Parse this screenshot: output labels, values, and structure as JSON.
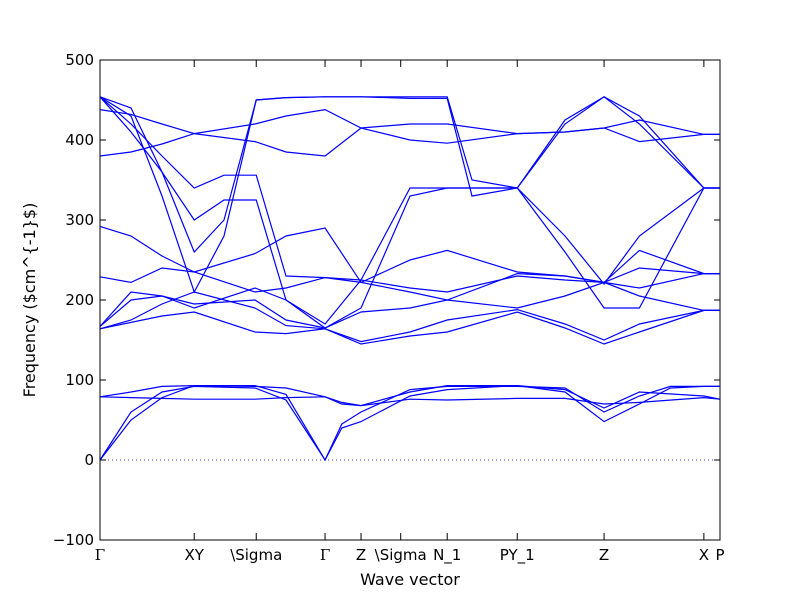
{
  "chart_data": {
    "type": "line",
    "title": "",
    "xlabel": "Wave vector",
    "ylabel": "Frequency ($cm^{-1}$)",
    "ylim": [
      -100,
      500
    ],
    "xlim": [
      0,
      1
    ],
    "yticks": [
      -100,
      0,
      100,
      200,
      300,
      400,
      500
    ],
    "grid": false,
    "legend": "none",
    "colors": {
      "bands": "#0000ff",
      "zero_line": "#0000ff",
      "axes": "#000000"
    },
    "special_points": [
      {
        "label": "Γ",
        "x": 0.0
      },
      {
        "label": "XY",
        "x": 0.152
      },
      {
        "label": "\\Sigma",
        "x": 0.252
      },
      {
        "label": "Γ",
        "x": 0.363
      },
      {
        "label": "Z",
        "x": 0.421
      },
      {
        "label": "\\Sigma",
        "x": 0.485
      },
      {
        "label": "N_1",
        "x": 0.56
      },
      {
        "label": "PY_1",
        "x": 0.673
      },
      {
        "label": "Z",
        "x": 0.813
      },
      {
        "label": "X",
        "x": 0.974
      },
      {
        "label": "P",
        "x": 1.0
      }
    ],
    "series": [
      {
        "values": [
          [
            0,
            0
          ],
          [
            0.05,
            60
          ],
          [
            0.1,
            85
          ],
          [
            0.152,
            92
          ],
          [
            0.25,
            90
          ],
          [
            0.3,
            75
          ],
          [
            0.363,
            0
          ],
          [
            0.39,
            40
          ],
          [
            0.421,
            48
          ],
          [
            0.5,
            80
          ],
          [
            0.56,
            88
          ],
          [
            0.673,
            93
          ],
          [
            0.75,
            85
          ],
          [
            0.813,
            48
          ],
          [
            0.87,
            70
          ],
          [
            0.92,
            90
          ],
          [
            0.974,
            92
          ],
          [
            1,
            92
          ]
        ]
      },
      {
        "values": [
          [
            0,
            0
          ],
          [
            0.05,
            50
          ],
          [
            0.1,
            78
          ],
          [
            0.152,
            93
          ],
          [
            0.25,
            93
          ],
          [
            0.3,
            82
          ],
          [
            0.363,
            0
          ],
          [
            0.39,
            45
          ],
          [
            0.421,
            60
          ],
          [
            0.5,
            88
          ],
          [
            0.56,
            92
          ],
          [
            0.673,
            92
          ],
          [
            0.75,
            90
          ],
          [
            0.813,
            60
          ],
          [
            0.87,
            80
          ],
          [
            0.92,
            92
          ],
          [
            0.974,
            92
          ],
          [
            1,
            92
          ]
        ]
      },
      {
        "values": [
          [
            0,
            79
          ],
          [
            0.05,
            85
          ],
          [
            0.1,
            92
          ],
          [
            0.152,
            93
          ],
          [
            0.25,
            92
          ],
          [
            0.3,
            90
          ],
          [
            0.363,
            79
          ],
          [
            0.39,
            72
          ],
          [
            0.421,
            68
          ],
          [
            0.5,
            85
          ],
          [
            0.56,
            93
          ],
          [
            0.673,
            93
          ],
          [
            0.75,
            88
          ],
          [
            0.813,
            65
          ],
          [
            0.87,
            85
          ],
          [
            0.974,
            80
          ],
          [
            1,
            76
          ]
        ]
      },
      {
        "values": [
          [
            0,
            79
          ],
          [
            0.05,
            78
          ],
          [
            0.1,
            77
          ],
          [
            0.152,
            76
          ],
          [
            0.25,
            76
          ],
          [
            0.3,
            78
          ],
          [
            0.363,
            79
          ],
          [
            0.39,
            70
          ],
          [
            0.421,
            68
          ],
          [
            0.5,
            76
          ],
          [
            0.56,
            75
          ],
          [
            0.673,
            77
          ],
          [
            0.75,
            77
          ],
          [
            0.813,
            70
          ],
          [
            0.87,
            72
          ],
          [
            0.974,
            78
          ],
          [
            1,
            76
          ]
        ]
      },
      {
        "values": [
          [
            0,
            164
          ],
          [
            0.05,
            172
          ],
          [
            0.1,
            180
          ],
          [
            0.152,
            185
          ],
          [
            0.25,
            160
          ],
          [
            0.3,
            158
          ],
          [
            0.363,
            164
          ],
          [
            0.421,
            145
          ],
          [
            0.5,
            155
          ],
          [
            0.56,
            160
          ],
          [
            0.673,
            185
          ],
          [
            0.75,
            165
          ],
          [
            0.813,
            145
          ],
          [
            0.87,
            160
          ],
          [
            0.974,
            187
          ],
          [
            1,
            187
          ]
        ]
      },
      {
        "values": [
          [
            0,
            164
          ],
          [
            0.05,
            175
          ],
          [
            0.1,
            195
          ],
          [
            0.152,
            210
          ],
          [
            0.25,
            190
          ],
          [
            0.3,
            168
          ],
          [
            0.363,
            164
          ],
          [
            0.421,
            148
          ],
          [
            0.5,
            160
          ],
          [
            0.56,
            175
          ],
          [
            0.673,
            188
          ],
          [
            0.75,
            170
          ],
          [
            0.813,
            150
          ],
          [
            0.87,
            170
          ],
          [
            0.974,
            187
          ],
          [
            1,
            187
          ]
        ]
      },
      {
        "values": [
          [
            0,
            167
          ],
          [
            0.05,
            200
          ],
          [
            0.1,
            205
          ],
          [
            0.152,
            195
          ],
          [
            0.25,
            200
          ],
          [
            0.3,
            175
          ],
          [
            0.363,
            165
          ],
          [
            0.421,
            185
          ],
          [
            0.5,
            190
          ],
          [
            0.56,
            200
          ],
          [
            0.673,
            190
          ],
          [
            0.75,
            205
          ],
          [
            0.813,
            222
          ],
          [
            0.87,
            205
          ],
          [
            0.974,
            187
          ],
          [
            1,
            187
          ]
        ]
      },
      {
        "values": [
          [
            0,
            167
          ],
          [
            0.05,
            210
          ],
          [
            0.1,
            205
          ],
          [
            0.152,
            190
          ],
          [
            0.25,
            215
          ],
          [
            0.3,
            200
          ],
          [
            0.363,
            170
          ],
          [
            0.421,
            225
          ],
          [
            0.5,
            215
          ],
          [
            0.56,
            210
          ],
          [
            0.673,
            230
          ],
          [
            0.75,
            225
          ],
          [
            0.813,
            222
          ],
          [
            0.87,
            240
          ],
          [
            0.974,
            233
          ],
          [
            1,
            233
          ]
        ]
      },
      {
        "values": [
          [
            0,
            229
          ],
          [
            0.05,
            222
          ],
          [
            0.1,
            240
          ],
          [
            0.152,
            235
          ],
          [
            0.25,
            258
          ],
          [
            0.3,
            280
          ],
          [
            0.363,
            290
          ],
          [
            0.421,
            222
          ],
          [
            0.5,
            250
          ],
          [
            0.56,
            262
          ],
          [
            0.673,
            235
          ],
          [
            0.75,
            230
          ],
          [
            0.813,
            222
          ],
          [
            0.87,
            262
          ],
          [
            0.974,
            233
          ],
          [
            1,
            233
          ]
        ]
      },
      {
        "values": [
          [
            0,
            292
          ],
          [
            0.05,
            280
          ],
          [
            0.1,
            255
          ],
          [
            0.152,
            235
          ],
          [
            0.25,
            210
          ],
          [
            0.3,
            215
          ],
          [
            0.363,
            228
          ],
          [
            0.421,
            222
          ],
          [
            0.5,
            210
          ],
          [
            0.56,
            200
          ],
          [
            0.673,
            233
          ],
          [
            0.75,
            230
          ],
          [
            0.813,
            222
          ],
          [
            0.87,
            215
          ],
          [
            0.974,
            233
          ],
          [
            1,
            233
          ]
        ]
      },
      {
        "values": [
          [
            0,
            380
          ],
          [
            0.05,
            385
          ],
          [
            0.1,
            395
          ],
          [
            0.152,
            408
          ],
          [
            0.25,
            398
          ],
          [
            0.3,
            385
          ],
          [
            0.363,
            380
          ],
          [
            0.421,
            415
          ],
          [
            0.5,
            400
          ],
          [
            0.56,
            396
          ],
          [
            0.673,
            408
          ],
          [
            0.75,
            410
          ],
          [
            0.813,
            415
          ],
          [
            0.87,
            425
          ],
          [
            0.974,
            407
          ],
          [
            1,
            407
          ]
        ]
      },
      {
        "values": [
          [
            0,
            438
          ],
          [
            0.05,
            432
          ],
          [
            0.1,
            420
          ],
          [
            0.152,
            408
          ],
          [
            0.25,
            420
          ],
          [
            0.3,
            430
          ],
          [
            0.363,
            438
          ],
          [
            0.421,
            415
          ],
          [
            0.5,
            420
          ],
          [
            0.56,
            420
          ],
          [
            0.673,
            408
          ],
          [
            0.75,
            410
          ],
          [
            0.813,
            415
          ],
          [
            0.87,
            398
          ],
          [
            0.974,
            407
          ],
          [
            1,
            407
          ]
        ]
      },
      {
        "values": [
          [
            0,
            454
          ],
          [
            0.05,
            420
          ],
          [
            0.1,
            380
          ],
          [
            0.152,
            340
          ],
          [
            0.2,
            356
          ],
          [
            0.252,
            356
          ],
          [
            0.3,
            230
          ],
          [
            0.363,
            228
          ],
          [
            0.421,
            225
          ],
          [
            0.5,
            340
          ],
          [
            0.56,
            340
          ],
          [
            0.673,
            340
          ],
          [
            0.75,
            260
          ],
          [
            0.813,
            190
          ],
          [
            0.87,
            190
          ],
          [
            0.974,
            340
          ],
          [
            1,
            340
          ]
        ]
      },
      {
        "values": [
          [
            0,
            454
          ],
          [
            0.05,
            410
          ],
          [
            0.1,
            360
          ],
          [
            0.152,
            300
          ],
          [
            0.2,
            325
          ],
          [
            0.252,
            325
          ],
          [
            0.3,
            200
          ],
          [
            0.363,
            165
          ],
          [
            0.421,
            190
          ],
          [
            0.5,
            330
          ],
          [
            0.56,
            340
          ],
          [
            0.673,
            340
          ],
          [
            0.75,
            280
          ],
          [
            0.813,
            220
          ],
          [
            0.87,
            280
          ],
          [
            0.974,
            340
          ],
          [
            1,
            340
          ]
        ]
      },
      {
        "values": [
          [
            0,
            454
          ],
          [
            0.05,
            440
          ],
          [
            0.1,
            360
          ],
          [
            0.152,
            260
          ],
          [
            0.2,
            300
          ],
          [
            0.252,
            450
          ],
          [
            0.3,
            453
          ],
          [
            0.363,
            454
          ],
          [
            0.421,
            454
          ],
          [
            0.5,
            454
          ],
          [
            0.56,
            454
          ],
          [
            0.6,
            350
          ],
          [
            0.673,
            340
          ],
          [
            0.75,
            420
          ],
          [
            0.813,
            454
          ],
          [
            0.87,
            430
          ],
          [
            0.974,
            340
          ],
          [
            1,
            340
          ]
        ]
      },
      {
        "values": [
          [
            0,
            454
          ],
          [
            0.05,
            430
          ],
          [
            0.1,
            330
          ],
          [
            0.152,
            210
          ],
          [
            0.2,
            280
          ],
          [
            0.252,
            450
          ],
          [
            0.3,
            453
          ],
          [
            0.363,
            454
          ],
          [
            0.421,
            454
          ],
          [
            0.5,
            452
          ],
          [
            0.56,
            452
          ],
          [
            0.6,
            330
          ],
          [
            0.673,
            340
          ],
          [
            0.75,
            425
          ],
          [
            0.813,
            454
          ],
          [
            0.87,
            420
          ],
          [
            0.974,
            340
          ],
          [
            1,
            340
          ]
        ]
      }
    ]
  }
}
